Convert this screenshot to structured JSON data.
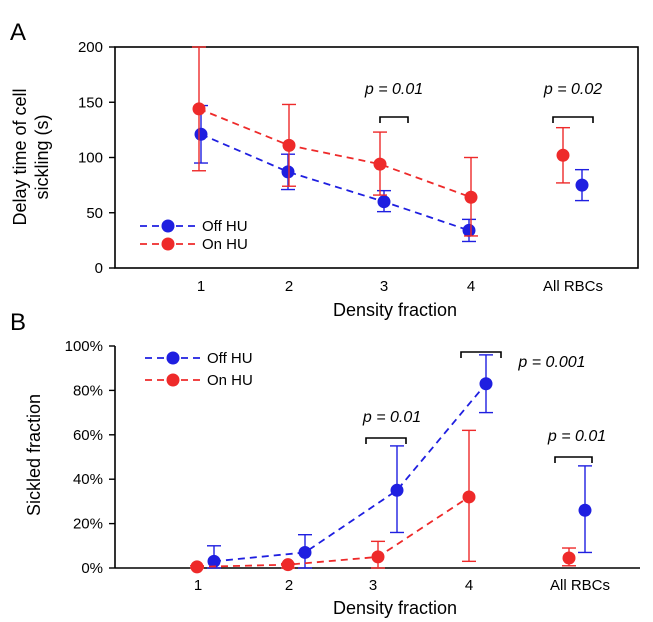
{
  "chart_data": [
    {
      "panel": "A",
      "type": "scatter",
      "xlabel": "Density fraction",
      "ylabel": "Delay time of cell sickling (s)",
      "ylim": [
        0,
        200
      ],
      "yticks": [
        "0",
        "50",
        "100",
        "150",
        "200"
      ],
      "categories": [
        "1",
        "2",
        "3",
        "4",
        "All RBCs"
      ],
      "legend_position": "bottom-left",
      "series": [
        {
          "name": "Off HU",
          "color": "#1f1fe0",
          "values": [
            121,
            87,
            60,
            34,
            75
          ],
          "err_low": [
            95,
            71,
            51,
            24,
            61
          ],
          "err_high": [
            147,
            103,
            70,
            44,
            89
          ]
        },
        {
          "name": "On HU",
          "color": "#ee2a2a",
          "values": [
            144,
            111,
            94,
            64,
            102
          ],
          "err_low": [
            88,
            74,
            66,
            29,
            77
          ],
          "err_high": [
            200,
            148,
            123,
            100,
            127
          ]
        }
      ],
      "annotations": [
        {
          "text": "p = 0.01",
          "category": "3"
        },
        {
          "text": "p = 0.02",
          "category": "All RBCs"
        }
      ]
    },
    {
      "panel": "B",
      "type": "scatter",
      "xlabel": "Density fraction",
      "ylabel": "Sickled  fraction",
      "ylim": [
        0,
        100
      ],
      "yticks": [
        "0%",
        "20%",
        "40%",
        "60%",
        "80%",
        "100%"
      ],
      "categories": [
        "1",
        "2",
        "3",
        "4",
        "All RBCs"
      ],
      "legend_position": "top-left",
      "series": [
        {
          "name": "Off HU",
          "color": "#1f1fe0",
          "values": [
            3,
            7,
            35,
            83,
            26
          ],
          "err_low": [
            0,
            0,
            16,
            70,
            7
          ],
          "err_high": [
            10,
            15,
            55,
            96,
            46
          ]
        },
        {
          "name": "On HU",
          "color": "#ee2a2a",
          "values": [
            0.5,
            1.5,
            5,
            32,
            4.5
          ],
          "err_low": [
            0,
            0,
            0,
            3,
            1
          ],
          "err_high": [
            1,
            2,
            12,
            62,
            9
          ]
        }
      ],
      "annotations": [
        {
          "text": "p = 0.01",
          "category": "3"
        },
        {
          "text": "p = 0.001",
          "category": "4"
        },
        {
          "text": "p = 0.01",
          "category": "All RBCs"
        }
      ]
    }
  ]
}
